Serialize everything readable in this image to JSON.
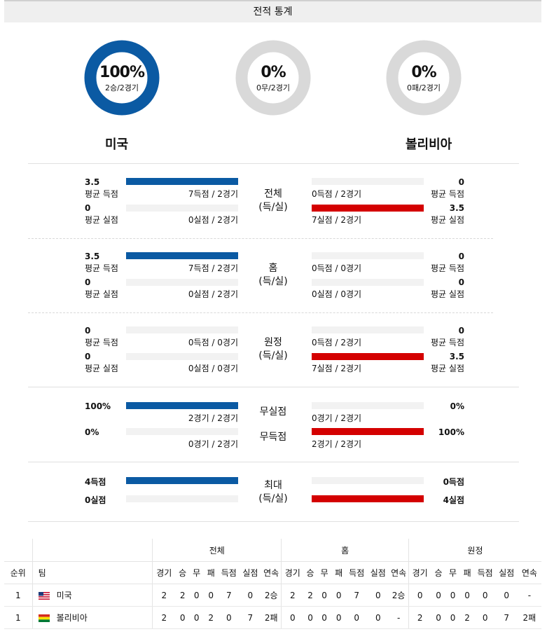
{
  "header": {
    "title": "전적 통계"
  },
  "teams": {
    "home": "미국",
    "away": "볼리비아"
  },
  "donuts": [
    {
      "pct": "100%",
      "sub": "2승/2경기",
      "fill": 1.0
    },
    {
      "pct": "0%",
      "sub": "0무/2경기",
      "fill": 0.0
    },
    {
      "pct": "0%",
      "sub": "0패/2경기",
      "fill": 0.0
    }
  ],
  "colors": {
    "home": "#0b5aa3",
    "away": "#d40000",
    "neutral": "#d9d9d9"
  },
  "sections": {
    "total": {
      "title1": "전체",
      "title2": "(득/실)",
      "l_scored": "3.5",
      "l_scored_lbl": "평균 득점",
      "l_scored_cap": "7득점 / 2경기",
      "l_scored_fill": 1.0,
      "l_conc": "0",
      "l_conc_lbl": "평균 실점",
      "l_conc_cap": "0실점 / 2경기",
      "l_conc_fill": 0.0,
      "r_scored": "0",
      "r_scored_lbl": "평균 득점",
      "r_scored_cap": "0득점 / 2경기",
      "r_scored_fill": 0.0,
      "r_conc": "3.5",
      "r_conc_lbl": "평균 실점",
      "r_conc_cap": "7실점 / 2경기",
      "r_conc_fill": 1.0
    },
    "home": {
      "title1": "홈",
      "title2": "(득/실)",
      "l_scored": "3.5",
      "l_scored_lbl": "평균 득점",
      "l_scored_cap": "7득점 / 2경기",
      "l_scored_fill": 1.0,
      "l_conc": "0",
      "l_conc_lbl": "평균 실점",
      "l_conc_cap": "0실점 / 2경기",
      "l_conc_fill": 0.0,
      "r_scored": "0",
      "r_scored_lbl": "평균 득점",
      "r_scored_cap": "0득점 / 0경기",
      "r_scored_fill": 0.0,
      "r_conc": "0",
      "r_conc_lbl": "평균 실점",
      "r_conc_cap": "0실점 / 0경기",
      "r_conc_fill": 0.0
    },
    "away": {
      "title1": "원정",
      "title2": "(득/실)",
      "l_scored": "0",
      "l_scored_lbl": "평균 득점",
      "l_scored_cap": "0득점 / 0경기",
      "l_scored_fill": 0.0,
      "l_conc": "0",
      "l_conc_lbl": "평균 실점",
      "l_conc_cap": "0실점 / 0경기",
      "l_conc_fill": 0.0,
      "r_scored": "0",
      "r_scored_lbl": "평균 득점",
      "r_scored_cap": "0득점 / 2경기",
      "r_scored_fill": 0.0,
      "r_conc": "3.5",
      "r_conc_lbl": "평균 실점",
      "r_conc_cap": "7실점 / 2경기",
      "r_conc_fill": 1.0
    },
    "clean": {
      "title_a": "무실점",
      "title_b": "무득점",
      "l_a": "100%",
      "l_a_cap": "2경기 / 2경기",
      "l_a_fill": 1.0,
      "l_b": "0%",
      "l_b_cap": "0경기 / 2경기",
      "l_b_fill": 0.0,
      "r_a": "0%",
      "r_a_cap": "0경기 / 2경기",
      "r_a_fill": 0.0,
      "r_b": "100%",
      "r_b_cap": "2경기 / 2경기",
      "r_b_fill": 1.0
    },
    "max": {
      "title1": "최대",
      "title2": "(득/실)",
      "l_a": "4득점",
      "l_a_fill": 1.0,
      "l_b": "0실점",
      "l_b_fill": 0.0,
      "r_a": "0득점",
      "r_a_fill": 0.0,
      "r_b": "4실점",
      "r_b_fill": 1.0
    }
  },
  "table": {
    "groups": [
      "전체",
      "홈",
      "원정"
    ],
    "col_rank": "순위",
    "col_team": "팀",
    "cols": [
      "경기",
      "승",
      "무",
      "패",
      "득점",
      "실점",
      "연속"
    ],
    "rows": [
      {
        "rank": "1",
        "flag": "us-flag-icon",
        "team": "미국",
        "total": [
          "2",
          "2",
          "0",
          "0",
          "7",
          "0",
          "2승"
        ],
        "home": [
          "2",
          "2",
          "0",
          "0",
          "7",
          "0",
          "2승"
        ],
        "away": [
          "0",
          "0",
          "0",
          "0",
          "0",
          "0",
          "-"
        ]
      },
      {
        "rank": "1",
        "flag": "bolivia-flag-icon",
        "team": "볼리비아",
        "total": [
          "2",
          "0",
          "0",
          "2",
          "0",
          "7",
          "2패"
        ],
        "home": [
          "0",
          "0",
          "0",
          "0",
          "0",
          "0",
          "-"
        ],
        "away": [
          "2",
          "0",
          "0",
          "2",
          "0",
          "7",
          "2패"
        ]
      }
    ]
  }
}
